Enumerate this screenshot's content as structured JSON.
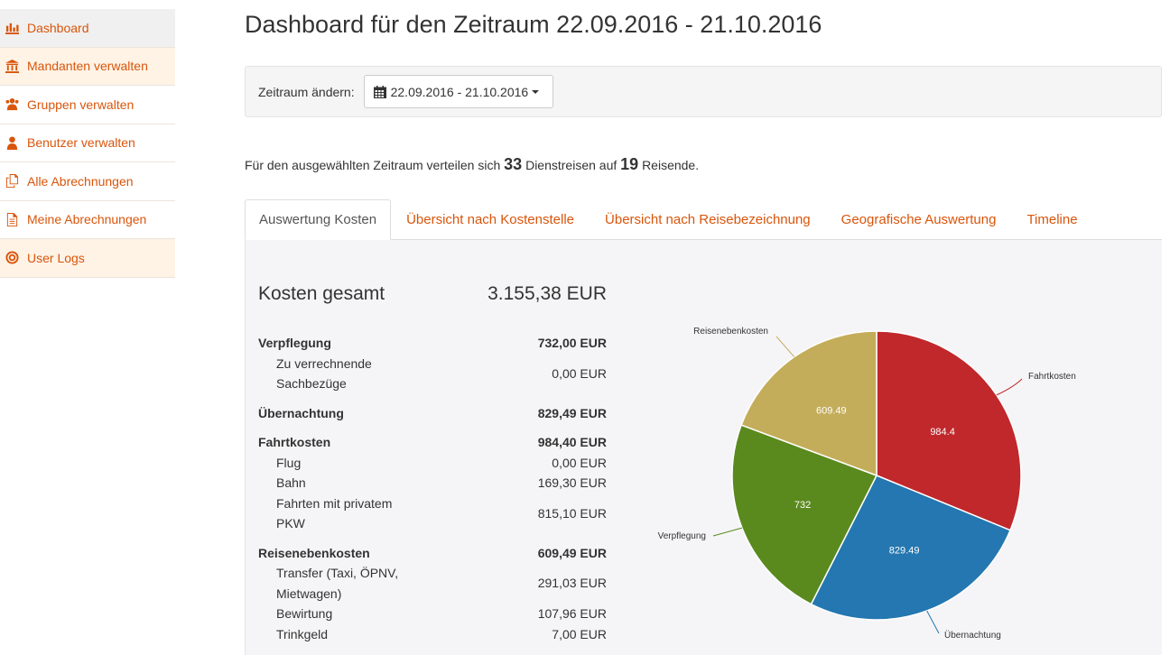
{
  "sidebar": {
    "items": [
      {
        "label": "Dashboard",
        "icon": "bar-chart-icon"
      },
      {
        "label": "Mandanten verwalten",
        "icon": "bank-icon"
      },
      {
        "label": "Gruppen verwalten",
        "icon": "users-icon"
      },
      {
        "label": "Benutzer verwalten",
        "icon": "user-icon"
      },
      {
        "label": "Alle Abrechnungen",
        "icon": "copy-icon"
      },
      {
        "label": "Meine Abrechnungen",
        "icon": "file-icon"
      },
      {
        "label": "User Logs",
        "icon": "target-icon"
      }
    ]
  },
  "header": {
    "title": "Dashboard für den Zeitraum 22.09.2016 - 21.10.2016"
  },
  "filter": {
    "label": "Zeitraum ändern:",
    "range": "22.09.2016 - 21.10.2016"
  },
  "summary": {
    "prefix": "Für den ausgewählten Zeitraum verteilen sich",
    "trips": "33",
    "middle": "Dienstreisen auf",
    "travelers": "19",
    "suffix": "Reisende."
  },
  "tabs": [
    {
      "label": "Auswertung Kosten"
    },
    {
      "label": "Übersicht nach Kostenstelle"
    },
    {
      "label": "Übersicht nach Reisebezeichnung"
    },
    {
      "label": "Geografische Auswertung"
    },
    {
      "label": "Timeline"
    }
  ],
  "costs": {
    "total_label": "Kosten gesamt",
    "total_value": "3.155,38 EUR",
    "rows": [
      {
        "label": "Verpflegung",
        "value": "732,00 EUR"
      },
      {
        "label": "Zu verrechnende Sachbezüge",
        "value": "0,00 EUR"
      },
      {
        "label": "Übernachtung",
        "value": "829,49 EUR"
      },
      {
        "label": "Fahrtkosten",
        "value": "984,40 EUR"
      },
      {
        "label": "Flug",
        "value": "0,00 EUR"
      },
      {
        "label": "Bahn",
        "value": "169,30 EUR"
      },
      {
        "label": "Fahrten mit privatem PKW",
        "value": "815,10 EUR"
      },
      {
        "label": "Reisenebenkosten",
        "value": "609,49 EUR"
      },
      {
        "label": "Transfer (Taxi, ÖPNV, Mietwagen)",
        "value": "291,03 EUR"
      },
      {
        "label": "Bewirtung",
        "value": "107,96 EUR"
      },
      {
        "label": "Trinkgeld",
        "value": "7,00 EUR"
      }
    ]
  },
  "chart_data": {
    "type": "pie",
    "slices": [
      {
        "name": "Fahrtkosten",
        "value": 984.4,
        "label": "984.4",
        "color": "#c0282b"
      },
      {
        "name": "Übernachtung",
        "value": 829.49,
        "label": "829.49",
        "color": "#2477b0"
      },
      {
        "name": "Verpflegung",
        "value": 732,
        "label": "732",
        "color": "#5a8a1e"
      },
      {
        "name": "Reisenebenkosten",
        "value": 609.49,
        "label": "609.49",
        "color": "#c4ad5a"
      }
    ],
    "legend": "none",
    "data_labels": "inside"
  }
}
